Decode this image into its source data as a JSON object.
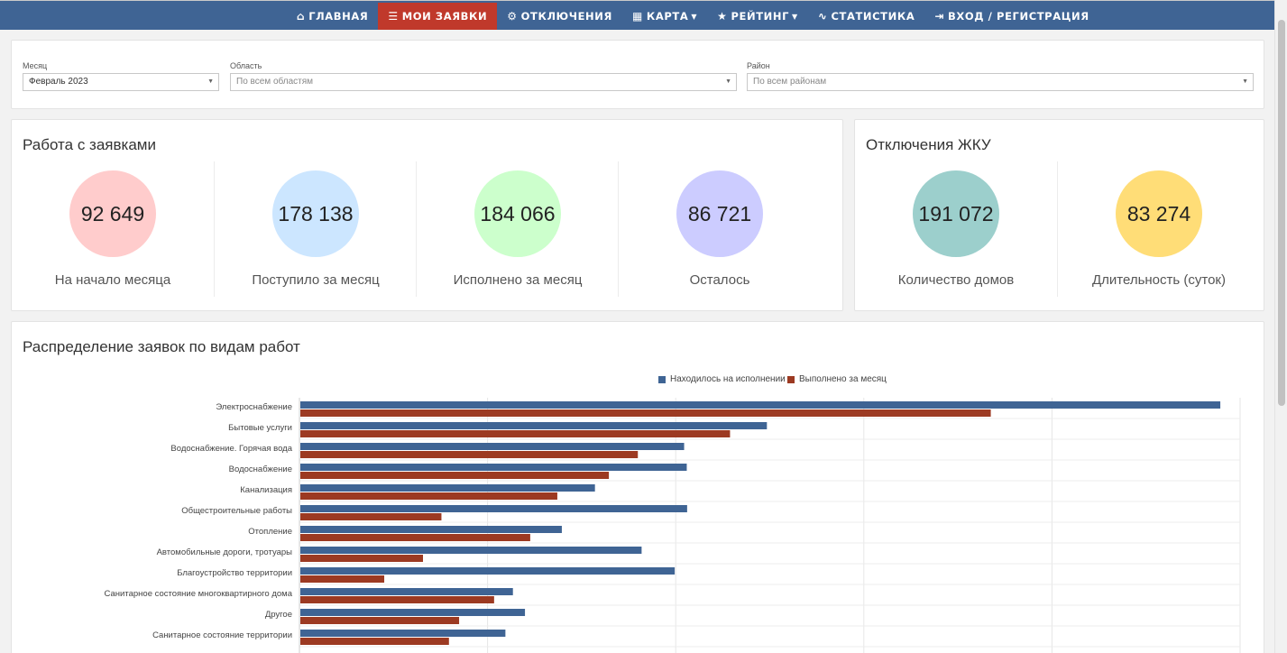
{
  "nav": [
    {
      "icon": "⌂",
      "label": "ГЛАВНАЯ",
      "active": false,
      "caret": false
    },
    {
      "icon": "☰",
      "label": "МОИ ЗАЯВКИ",
      "active": true,
      "caret": false
    },
    {
      "icon": "⚙",
      "label": "ОТКЛЮЧЕНИЯ",
      "active": false,
      "caret": false
    },
    {
      "icon": "▦",
      "label": "КАРТА",
      "active": false,
      "caret": true
    },
    {
      "icon": "★",
      "label": "РЕЙТИНГ",
      "active": false,
      "caret": true
    },
    {
      "icon": "∿",
      "label": "СТАТИСТИКА",
      "active": false,
      "caret": false
    },
    {
      "icon": "⇥",
      "label": "ВХОД / РЕГИСТРАЦИЯ",
      "active": false,
      "caret": false
    }
  ],
  "filters": {
    "month": {
      "label": "Месяц",
      "value": "Февраль 2023"
    },
    "region": {
      "label": "Область",
      "placeholder": "По всем областям"
    },
    "district": {
      "label": "Район",
      "placeholder": "По всем районам"
    }
  },
  "requests": {
    "title": "Работа с заявками",
    "stats": [
      {
        "value": "92 649",
        "label": "На начало месяца",
        "color": "#ffcccc"
      },
      {
        "value": "178 138",
        "label": "Поступило за месяц",
        "color": "#cce6ff"
      },
      {
        "value": "184 066",
        "label": "Исполнено за месяц",
        "color": "#ccffcc"
      },
      {
        "value": "86 721",
        "label": "Осталось",
        "color": "#ccccff"
      }
    ]
  },
  "outages": {
    "title": "Отключения ЖКУ",
    "stats": [
      {
        "value": "191 072",
        "label": "Количество домов",
        "color": "#9ccfcc"
      },
      {
        "value": "83 274",
        "label": "Длительность (суток)",
        "color": "#ffdd77"
      }
    ]
  },
  "distribution": {
    "title": "Распределение заявок по видам работ"
  },
  "chart_data": {
    "type": "bar",
    "orientation": "horizontal",
    "legend_position": "top",
    "grid": true,
    "xlim": [
      0,
      2500
    ],
    "categories": [
      "Электроснабжение",
      "Бытовые услуги",
      "Водоснабжение. Горячая вода",
      "Водоснабжение",
      "Канализация",
      "Общестроительные работы",
      "Отопление",
      "Автомобильные дороги, тротуары",
      "Благоустройство территории",
      "Санитарное состояние многоквартирного дома",
      "Другое",
      "Санитарное состояние территории"
    ],
    "series": [
      {
        "name": "Находилось на исполнении",
        "color": "#3f6494",
        "values": [
          2445,
          1240,
          1020,
          1027,
          783,
          1028,
          695,
          907,
          995,
          565,
          597,
          545
        ]
      },
      {
        "name": "Выполнено за месяц",
        "color": "#9c3a22",
        "values": [
          1835,
          1142,
          897,
          820,
          683,
          375,
          611,
          326,
          223,
          515,
          422,
          395
        ]
      }
    ]
  }
}
